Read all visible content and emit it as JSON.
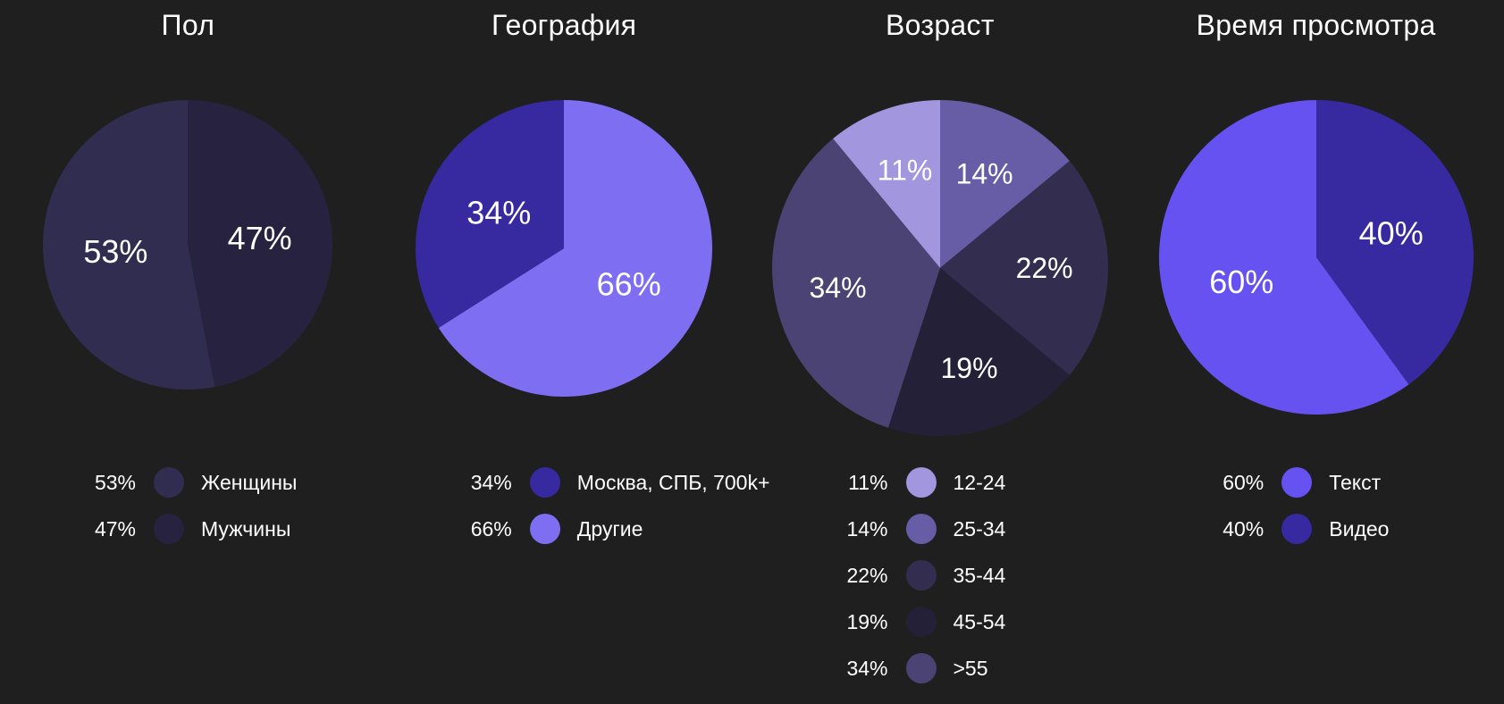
{
  "page": {
    "background_color": "#1F1F1F",
    "text_color": "#FFFFFF"
  },
  "chart_data": [
    {
      "type": "pie",
      "title": "Пол",
      "labels": [
        "Женщины",
        "Мужчины"
      ],
      "values": [
        53,
        47
      ],
      "colors": [
        "#312D50",
        "#272240"
      ],
      "draw_order": [
        1,
        0
      ],
      "radius_px": 162,
      "label_radius": 0.5,
      "legend_position": "below",
      "value_suffix": "%"
    },
    {
      "type": "pie",
      "title": "География",
      "labels": [
        "Москва, СПБ, 700k+",
        "Другие"
      ],
      "values": [
        34,
        66
      ],
      "colors": [
        "#37299F",
        "#7E6FF2"
      ],
      "draw_order": [
        1,
        0
      ],
      "radius_px": 166,
      "label_radius": 0.5,
      "legend_position": "below",
      "value_suffix": "%"
    },
    {
      "type": "pie",
      "title": "Возраст",
      "labels": [
        "12-24",
        "25-34",
        "35-44",
        "45-54",
        ">55"
      ],
      "values": [
        11,
        14,
        22,
        19,
        34
      ],
      "colors": [
        "#A296DE",
        "#675CA6",
        "#332D50",
        "#242038",
        "#4B4373"
      ],
      "draw_order": [
        1,
        2,
        3,
        4,
        0
      ],
      "radius_px": 188,
      "label_radius": 0.62,
      "legend_position": "below",
      "value_suffix": "%"
    },
    {
      "type": "pie",
      "title": "Время просмотра",
      "labels": [
        "Текст",
        "Видео"
      ],
      "values": [
        60,
        40
      ],
      "colors": [
        "#6552F0",
        "#37299F"
      ],
      "draw_order": [
        1,
        0
      ],
      "radius_px": 176,
      "label_radius": 0.5,
      "legend_position": "below",
      "value_suffix": "%"
    }
  ]
}
